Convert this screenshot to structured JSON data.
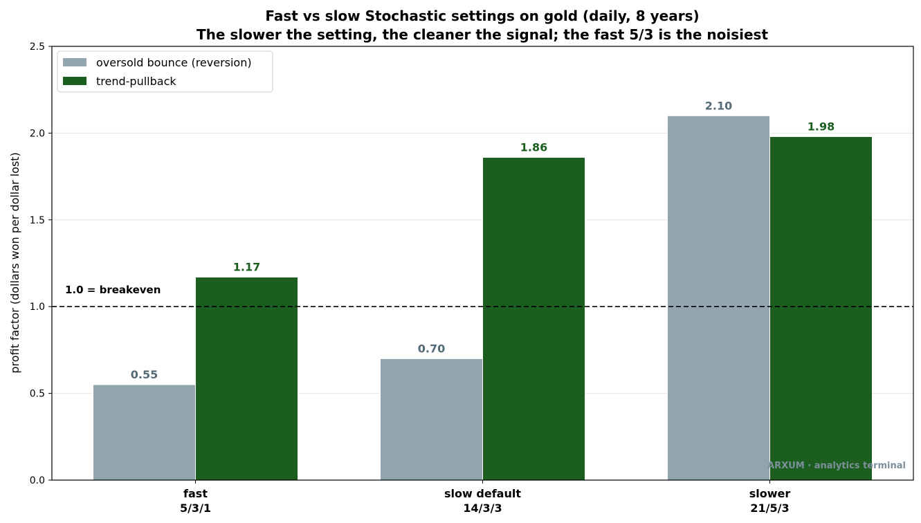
{
  "chart_data": {
    "type": "bar",
    "title": "Fast vs slow Stochastic settings on gold (daily, 8 years)",
    "subtitle": "The slower the setting, the cleaner the signal; the fast 5/3 is the noisiest",
    "xlabel": "",
    "ylabel": "profit factor (dollars won per dollar lost)",
    "ylim": [
      0,
      2.5
    ],
    "yticks": [
      "0.0",
      "0.5",
      "1.0",
      "1.5",
      "2.0",
      "2.5"
    ],
    "ytick_values": [
      0,
      0.5,
      1.0,
      1.5,
      2.0,
      2.5
    ],
    "categories": [
      {
        "name": "fast",
        "setting": "5/3/1"
      },
      {
        "name": "slow default",
        "setting": "14/3/3"
      },
      {
        "name": "slower",
        "setting": "21/5/3"
      }
    ],
    "series": [
      {
        "name": "oversold bounce (reversion)",
        "values": [
          0.55,
          0.7,
          2.1
        ],
        "labels": [
          "0.55",
          "0.70",
          "2.10"
        ],
        "color": "#92a4ae",
        "label_color": "#546a76"
      },
      {
        "name": "trend-pullback",
        "values": [
          1.17,
          1.86,
          1.98
        ],
        "labels": [
          "1.17",
          "1.86",
          "1.98"
        ],
        "color": "#1b5e20",
        "label_color": "#1b5e20"
      }
    ],
    "reference_line": {
      "value": 1.0,
      "label": "1.0 = breakeven",
      "style": "dashed"
    },
    "grid": true,
    "legend_position": "top-left",
    "watermark": "ARXUM · analytics terminal"
  }
}
